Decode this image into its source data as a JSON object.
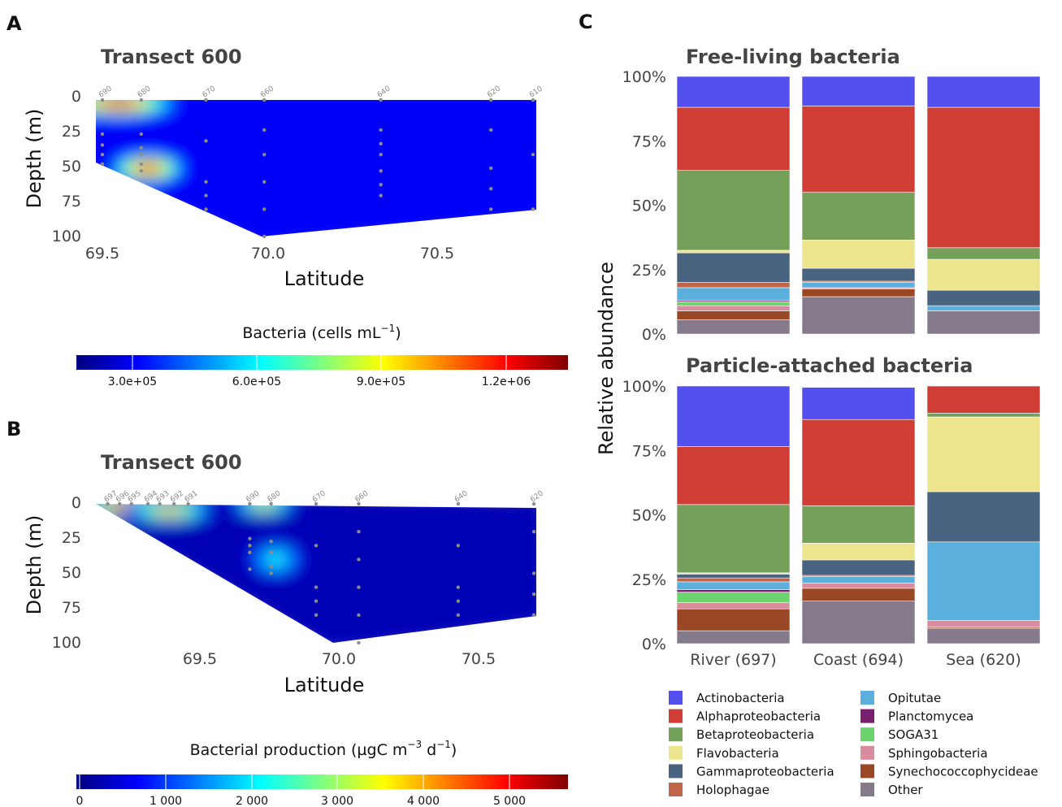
{
  "colors": {
    "jet": [
      "#00007f",
      "#0000ff",
      "#007fff",
      "#00ffff",
      "#7fff7f",
      "#ffff00",
      "#ff7f00",
      "#ff0000",
      "#7f0000"
    ],
    "sample_dot": "#8c8c8c"
  },
  "panels": {
    "A": {
      "letter": "A",
      "title": "Transect 600",
      "xlabel": "Latitude",
      "ylabel": "Depth (m)",
      "yticks": [
        "0",
        "25",
        "50",
        "75",
        "100"
      ],
      "xticks": [
        "69.5",
        "70.0",
        "70.5"
      ],
      "colorbar_label": "Bacteria (cells mL",
      "colorbar_sup": "−1",
      "colorbar_label_end": ")",
      "colorbar_ticks": [
        "3.0e+05",
        "6.0e+05",
        "9.0e+05",
        "1.2e+06"
      ],
      "stations": [
        "690",
        "680",
        "670",
        "660",
        "640",
        "620",
        "610"
      ]
    },
    "B": {
      "letter": "B",
      "title": "Transect 600",
      "xlabel": "Latitude",
      "ylabel": "Depth (m)",
      "yticks": [
        "0",
        "25",
        "50",
        "75",
        "100"
      ],
      "xticks": [
        "69.5",
        "70.0",
        "70.5"
      ],
      "colorbar_label": "Bacterial production (µgC m",
      "colorbar_sup1": "−3",
      "colorbar_mid": " d",
      "colorbar_sup2": "−1",
      "colorbar_label_end": ")",
      "colorbar_ticks": [
        "0",
        "1 000",
        "2 000",
        "3 000",
        "4 000",
        "5 000"
      ],
      "stations": [
        "697",
        "696",
        "695",
        "694",
        "693",
        "692",
        "691",
        "690",
        "680",
        "670",
        "660",
        "640",
        "620"
      ]
    },
    "C": {
      "letter": "C",
      "ylabel": "Relative abundance"
    }
  },
  "chart_data": [
    {
      "type": "heatmap",
      "panel": "A",
      "title": "Transect 600",
      "xlabel": "Latitude",
      "ylabel": "Depth (m)",
      "xlim": [
        69.46,
        70.82
      ],
      "ylim": [
        100,
        0
      ],
      "colorbar": {
        "label": "Bacteria (cells mL−1)",
        "range": [
          100000,
          1360000
        ]
      },
      "stations": [
        {
          "name": "690",
          "lat": 69.48,
          "depths": [
            0,
            25,
            33,
            40,
            47
          ]
        },
        {
          "name": "680",
          "lat": 69.6,
          "depths": [
            0,
            25,
            35,
            40,
            47,
            52
          ]
        },
        {
          "name": "670",
          "lat": 69.8,
          "depths": [
            0,
            30,
            60,
            70,
            80
          ]
        },
        {
          "name": "660",
          "lat": 69.98,
          "depths": [
            0,
            22,
            40,
            60,
            80,
            100
          ]
        },
        {
          "name": "640",
          "lat": 70.34,
          "depths": [
            0,
            22,
            32,
            40,
            52,
            62,
            70
          ]
        },
        {
          "name": "620",
          "lat": 70.68,
          "depths": [
            0,
            22,
            50,
            65,
            80
          ]
        },
        {
          "name": "610",
          "lat": 70.81,
          "depths": [
            0,
            40,
            80
          ]
        }
      ],
      "hotspots": [
        {
          "lat": 69.53,
          "depth": 3,
          "value": 1300000
        },
        {
          "lat": 69.62,
          "depth": 50,
          "value": 1250000
        }
      ],
      "background_value": 250000
    },
    {
      "type": "heatmap",
      "panel": "B",
      "title": "Transect 600",
      "xlabel": "Latitude",
      "ylabel": "Depth (m)",
      "xlim": [
        68.87,
        70.73
      ],
      "ylim": [
        100,
        0
      ],
      "colorbar": {
        "label": "Bacterial production (µgC m−3 d−1)",
        "range": [
          0,
          5700
        ]
      },
      "stations": [
        {
          "name": "697",
          "lat": 68.92,
          "depths": [
            0
          ]
        },
        {
          "name": "696",
          "lat": 68.97,
          "depths": [
            0
          ]
        },
        {
          "name": "695",
          "lat": 69.02,
          "depths": [
            0
          ]
        },
        {
          "name": "694",
          "lat": 69.09,
          "depths": [
            0
          ]
        },
        {
          "name": "693",
          "lat": 69.14,
          "depths": [
            0
          ]
        },
        {
          "name": "692",
          "lat": 69.2,
          "depths": [
            0
          ]
        },
        {
          "name": "691",
          "lat": 69.26,
          "depths": [
            0
          ]
        },
        {
          "name": "690",
          "lat": 69.52,
          "depths": [
            0,
            25,
            30,
            35,
            47
          ]
        },
        {
          "name": "680",
          "lat": 69.61,
          "depths": [
            0,
            27,
            35,
            45,
            50
          ]
        },
        {
          "name": "670",
          "lat": 69.8,
          "depths": [
            0,
            30,
            60,
            70,
            80
          ]
        },
        {
          "name": "660",
          "lat": 69.98,
          "depths": [
            0,
            20,
            40,
            60,
            80,
            100
          ]
        },
        {
          "name": "640",
          "lat": 70.4,
          "depths": [
            0,
            30,
            60,
            70,
            80
          ]
        },
        {
          "name": "620",
          "lat": 70.72,
          "depths": [
            0,
            20,
            50,
            65,
            80
          ]
        }
      ],
      "hotspots": [
        {
          "lat": 69.0,
          "depth": 2,
          "value": 5500
        },
        {
          "lat": 69.18,
          "depth": 5,
          "value": 4500
        },
        {
          "lat": 69.58,
          "depth": 1,
          "value": 4000
        },
        {
          "lat": 69.63,
          "depth": 40,
          "value": 2500
        }
      ],
      "background_value": 300
    },
    {
      "type": "bar",
      "panel": "C-top",
      "title": "Free-living bacteria",
      "ylabel": "Relative abundance",
      "yticks": [
        "0%",
        "25%",
        "50%",
        "75%",
        "100%"
      ],
      "ylim": [
        0,
        100
      ],
      "categories": [
        "River (697)",
        "Coast (694)",
        "Sea (620)"
      ],
      "stacked": true,
      "series": [
        {
          "name": "Other",
          "color": "#857a8c",
          "values": [
            5.5,
            14.5,
            9
          ]
        },
        {
          "name": "Synechococcophycideae",
          "color": "#9a4726",
          "values": [
            3.5,
            3,
            0
          ]
        },
        {
          "name": "Sphingobacteria",
          "color": "#d98c9e",
          "values": [
            2,
            0.5,
            0
          ]
        },
        {
          "name": "SOGA31",
          "color": "#6bd36b",
          "values": [
            1.5,
            0,
            0
          ]
        },
        {
          "name": "Planctomycea",
          "color": "#7a1f6d",
          "values": [
            0.5,
            0,
            0
          ]
        },
        {
          "name": "Opitutae",
          "color": "#5aafdc",
          "values": [
            5,
            2,
            2
          ]
        },
        {
          "name": "Holophagae",
          "color": "#c06548",
          "values": [
            2,
            0.5,
            0
          ]
        },
        {
          "name": "Gammaproteobacteria",
          "color": "#486480",
          "values": [
            11.5,
            5,
            6
          ]
        },
        {
          "name": "Flavobacteria",
          "color": "#ede48e",
          "values": [
            1,
            11,
            12
          ]
        },
        {
          "name": "Betaproteobacteria",
          "color": "#75a05a",
          "values": [
            31,
            18.5,
            4.5
          ]
        },
        {
          "name": "Alphaproteobacteria",
          "color": "#d03d35",
          "values": [
            24.5,
            33.5,
            54.5
          ]
        },
        {
          "name": "Actinobacteria",
          "color": "#5350ef",
          "values": [
            12,
            11.5,
            12
          ]
        }
      ]
    },
    {
      "type": "bar",
      "panel": "C-bottom",
      "title": "Particle-attached bacteria",
      "ylabel": "Relative abundance",
      "yticks": [
        "0%",
        "25%",
        "50%",
        "75%",
        "100%"
      ],
      "ylim": [
        0,
        100
      ],
      "categories": [
        "River (697)",
        "Coast (694)",
        "Sea (620)"
      ],
      "stacked": true,
      "series": [
        {
          "name": "Other",
          "color": "#857a8c",
          "values": [
            5,
            16.5,
            6
          ]
        },
        {
          "name": "Synechococcophycideae",
          "color": "#9a4726",
          "values": [
            8.5,
            5,
            0.5
          ]
        },
        {
          "name": "Sphingobacteria",
          "color": "#d98c9e",
          "values": [
            2.5,
            2,
            2.5
          ]
        },
        {
          "name": "SOGA31",
          "color": "#6bd36b",
          "values": [
            4,
            0,
            0
          ]
        },
        {
          "name": "Planctomycea",
          "color": "#7a1f6d",
          "values": [
            1,
            0,
            0
          ]
        },
        {
          "name": "Opitutae",
          "color": "#5aafdc",
          "values": [
            3,
            2.5,
            30.5
          ]
        },
        {
          "name": "Holophagae",
          "color": "#c06548",
          "values": [
            1.5,
            0.5,
            0
          ]
        },
        {
          "name": "Gammaproteobacteria",
          "color": "#486480",
          "values": [
            1.5,
            6,
            19.5
          ]
        },
        {
          "name": "Flavobacteria",
          "color": "#ede48e",
          "values": [
            0.5,
            6.5,
            29
          ]
        },
        {
          "name": "Betaproteobacteria",
          "color": "#75a05a",
          "values": [
            26.5,
            14.5,
            1.5
          ]
        },
        {
          "name": "Alphaproteobacteria",
          "color": "#d03d35",
          "values": [
            22.5,
            33.5,
            10.5
          ]
        },
        {
          "name": "Actinobacteria",
          "color": "#5350ef",
          "values": [
            23.5,
            12.5,
            0
          ]
        }
      ]
    }
  ],
  "legend": [
    {
      "name": "Actinobacteria",
      "color": "#5350ef"
    },
    {
      "name": "Alphaproteobacteria",
      "color": "#d03d35"
    },
    {
      "name": "Betaproteobacteria",
      "color": "#75a05a"
    },
    {
      "name": "Flavobacteria",
      "color": "#ede48e"
    },
    {
      "name": "Gammaproteobacteria",
      "color": "#486480"
    },
    {
      "name": "Holophagae",
      "color": "#c06548"
    },
    {
      "name": "Opitutae",
      "color": "#5aafdc"
    },
    {
      "name": "Planctomycea",
      "color": "#7a1f6d"
    },
    {
      "name": "SOGA31",
      "color": "#6bd36b"
    },
    {
      "name": "Sphingobacteria",
      "color": "#d98c9e"
    },
    {
      "name": "Synechococcophycideae",
      "color": "#9a4726"
    },
    {
      "name": "Other",
      "color": "#857a8c"
    }
  ]
}
